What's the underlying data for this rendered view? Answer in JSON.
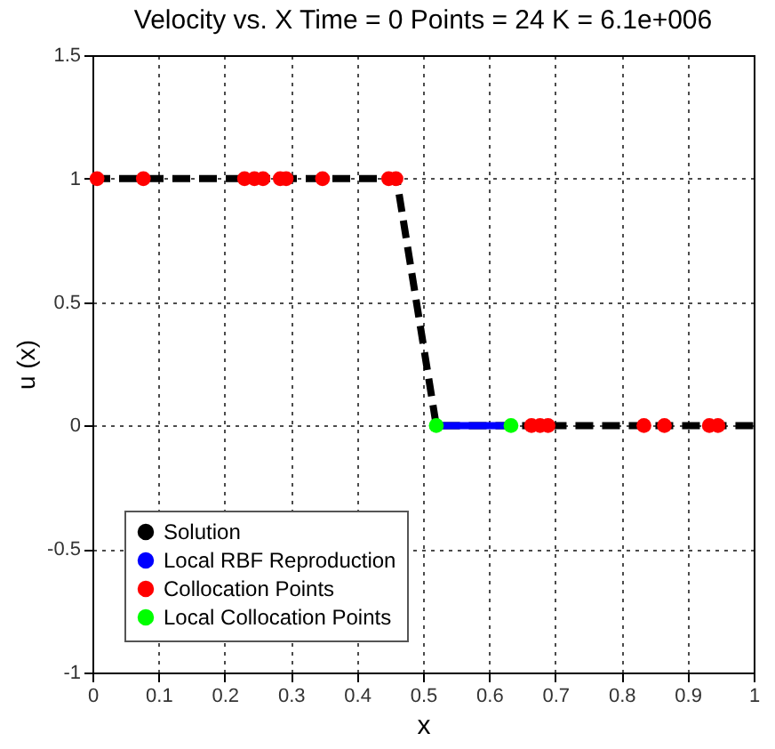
{
  "chart_data": {
    "type": "line",
    "title": "Velocity vs. X  Time = 0  Points = 24  K = 6.1e+006",
    "xlabel": "x",
    "ylabel": "u (x)",
    "xlim": [
      0,
      1
    ],
    "xticks": [
      0,
      0.1,
      0.2,
      0.3,
      0.4,
      0.5,
      0.6,
      0.7,
      0.8,
      0.9,
      1
    ],
    "ylim": [
      -1,
      1.5
    ],
    "yticks": [
      -1,
      -0.5,
      0,
      0.5,
      1,
      1.5
    ],
    "grid": true,
    "legend": "bottom left",
    "series": [
      {
        "name": "Solution",
        "color": "#000000",
        "line_style": "dashed",
        "x": [
          0,
          0.46,
          0.52,
          1
        ],
        "values": [
          1,
          1,
          0,
          0
        ]
      },
      {
        "name": "Local RBF Reproduction",
        "color": "#0000ff",
        "line_style": "solid",
        "x": [
          0.52,
          0.633
        ],
        "values": [
          0,
          0
        ]
      },
      {
        "name": "Collocation Points",
        "type": "scatter",
        "color": "#ff0000",
        "marker": "circle",
        "x": [
          0.007,
          0.077,
          0.23,
          0.245,
          0.258,
          0.284,
          0.293,
          0.348,
          0.448,
          0.459,
          0.664,
          0.677,
          0.689,
          0.834,
          0.865,
          0.933,
          0.946
        ],
        "values": [
          1,
          1,
          1,
          1,
          1,
          1,
          1,
          1,
          1,
          1,
          0,
          0,
          0,
          0,
          0,
          0,
          0
        ]
      },
      {
        "name": "Local Collocation Points",
        "type": "scatter",
        "color": "#00ff00",
        "marker": "circle",
        "x": [
          0.52,
          0.633
        ],
        "values": [
          0,
          0
        ]
      }
    ]
  }
}
